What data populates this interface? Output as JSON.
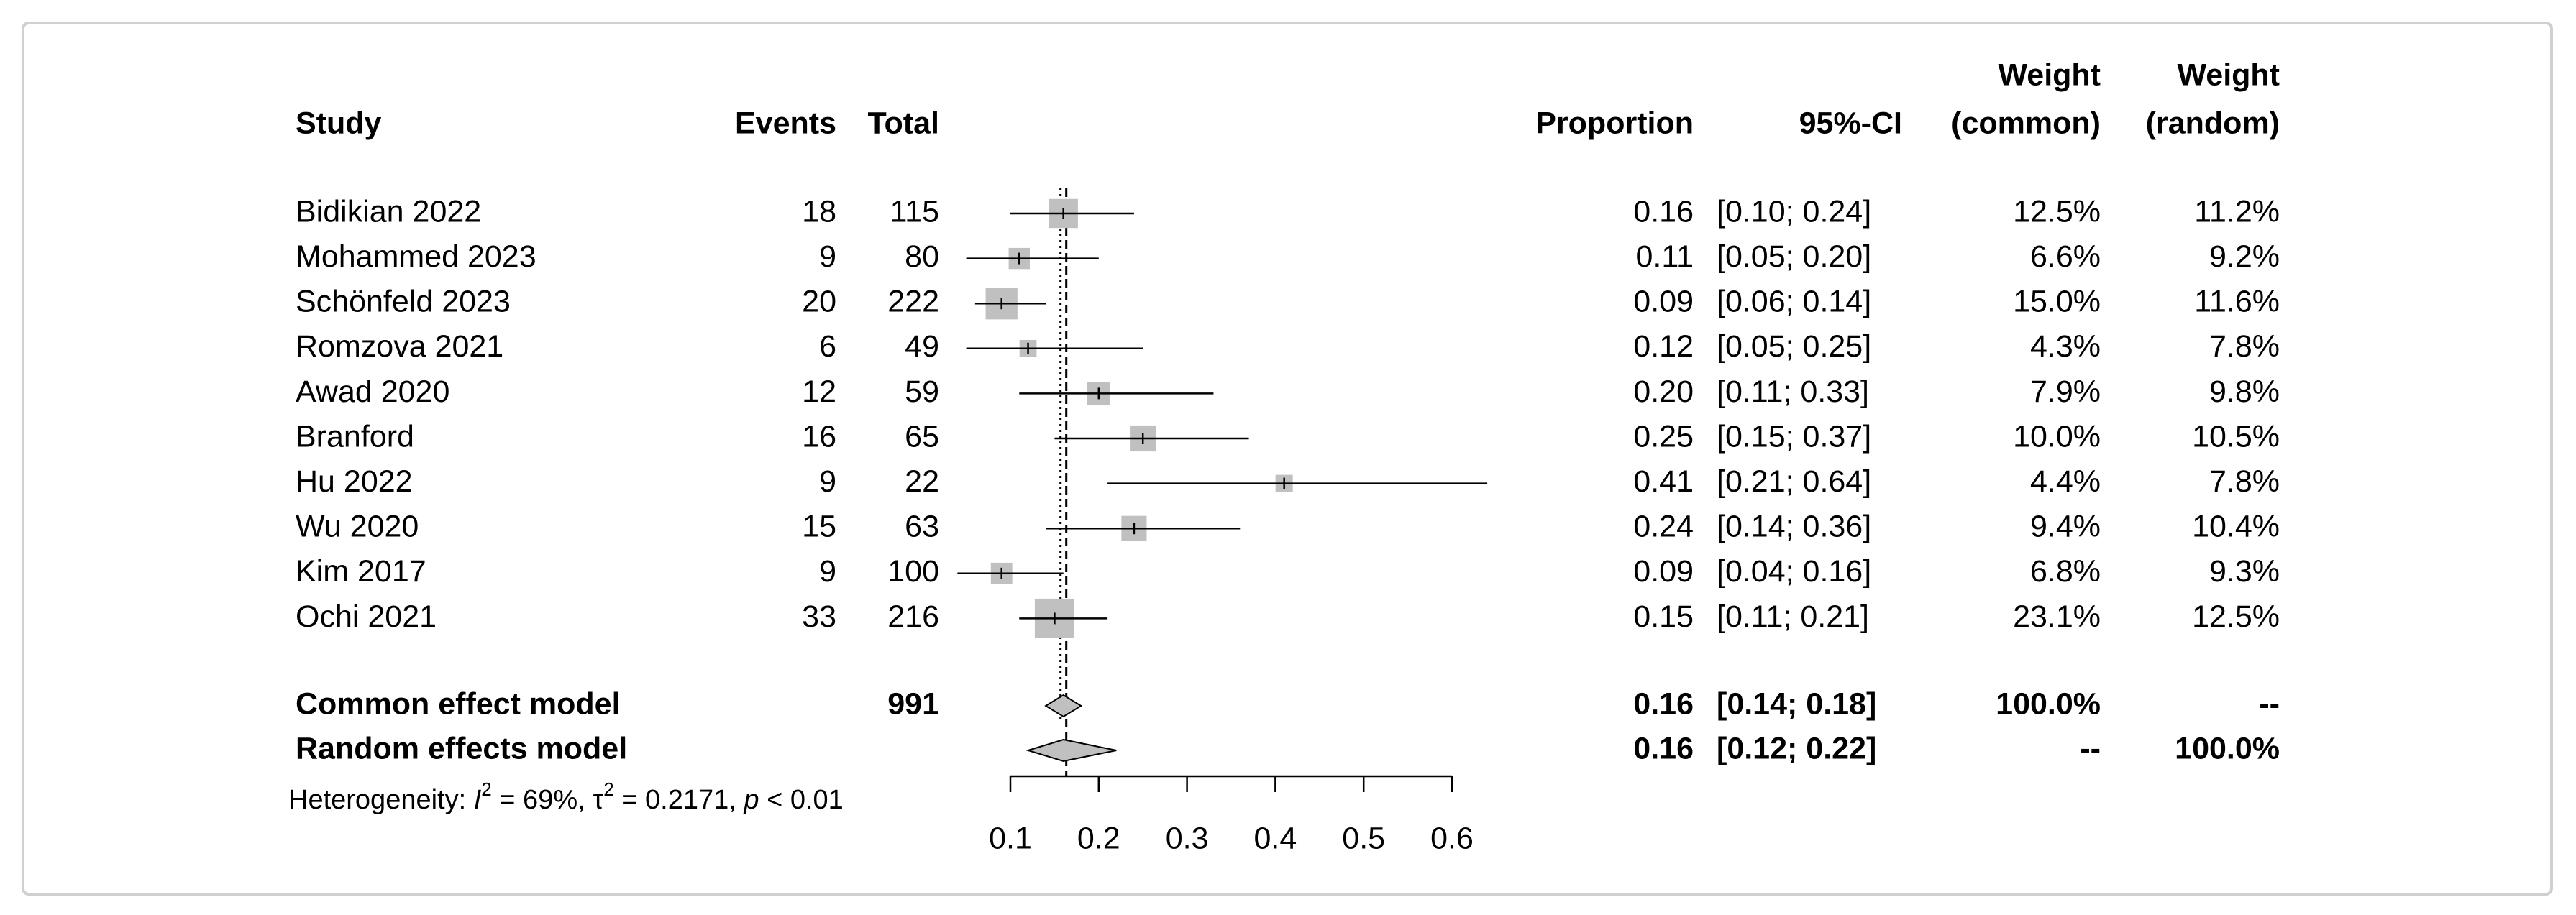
{
  "chart_data": {
    "type": "forest",
    "headers": {
      "study": "Study",
      "events": "Events",
      "total": "Total",
      "proportion": "Proportion",
      "ci": "95%-CI",
      "weight_common": [
        "Weight",
        "(common)"
      ],
      "weight_random": [
        "Weight",
        "(random)"
      ]
    },
    "studies": [
      "Bidikian 2022",
      "Mohammed 2023",
      "Schönfeld 2023",
      "Romzova 2021",
      "Awad 2020",
      "Branford",
      "Hu 2022",
      "Wu 2020",
      "Kim 2017",
      "Ochi 2021"
    ],
    "events": [
      18,
      9,
      20,
      6,
      12,
      16,
      9,
      15,
      9,
      33
    ],
    "totals": [
      115,
      80,
      222,
      49,
      59,
      65,
      22,
      63,
      100,
      216
    ],
    "values": [
      0.16,
      0.11,
      0.09,
      0.12,
      0.2,
      0.25,
      0.41,
      0.24,
      0.09,
      0.15
    ],
    "value_labels": [
      "0.16",
      "0.11",
      "0.09",
      "0.12",
      "0.20",
      "0.25",
      "0.41",
      "0.24",
      "0.09",
      "0.15"
    ],
    "ci_lower": [
      0.1,
      0.05,
      0.06,
      0.05,
      0.11,
      0.15,
      0.21,
      0.14,
      0.04,
      0.11
    ],
    "ci_upper": [
      0.24,
      0.2,
      0.14,
      0.25,
      0.33,
      0.37,
      0.64,
      0.36,
      0.16,
      0.21
    ],
    "ci_labels": [
      "[0.10; 0.24]",
      "[0.05; 0.20]",
      "[0.06; 0.14]",
      "[0.05; 0.25]",
      "[0.11; 0.33]",
      "[0.15; 0.37]",
      "[0.21; 0.64]",
      "[0.14; 0.36]",
      "[0.04; 0.16]",
      "[0.11; 0.21]"
    ],
    "weights_common": [
      12.5,
      6.6,
      15.0,
      4.3,
      7.9,
      10.0,
      4.4,
      9.4,
      6.8,
      23.1
    ],
    "weights_common_labels": [
      "12.5%",
      "6.6%",
      "15.0%",
      "4.3%",
      "7.9%",
      "10.0%",
      "4.4%",
      "9.4%",
      "6.8%",
      "23.1%"
    ],
    "weights_random": [
      11.2,
      9.2,
      11.6,
      7.8,
      9.8,
      10.5,
      7.8,
      10.4,
      9.3,
      12.5
    ],
    "weights_random_labels": [
      "11.2%",
      "9.2%",
      "11.6%",
      "7.8%",
      "9.8%",
      "10.5%",
      "7.8%",
      "10.4%",
      "9.3%",
      "12.5%"
    ],
    "pooled": [
      {
        "name": "Common effect model",
        "total": 991,
        "value": 0.16,
        "value_label": "0.16",
        "ci_lower": 0.14,
        "ci_upper": 0.18,
        "ci_label": "[0.14; 0.18]",
        "weight_common_label": "100.0%",
        "weight_random_label": "--"
      },
      {
        "name": "Random effects model",
        "value": 0.16,
        "value_label": "0.16",
        "ci_lower": 0.12,
        "ci_upper": 0.22,
        "ci_label": "[0.12; 0.22]",
        "weight_common_label": "--",
        "weight_random_label": "100.0%"
      }
    ],
    "heterogeneity": [
      "Heterogeneity: ",
      "I",
      "2",
      " = 69%, ",
      "τ",
      "2",
      " = 0.2171, ",
      "p",
      " < 0.01"
    ],
    "xlim": [
      0.1,
      0.6
    ],
    "xticks": [
      0.1,
      0.2,
      0.3,
      0.4,
      0.5,
      0.6
    ],
    "square_color": "#c0c0c0",
    "diamond_color": "#c0c0c0"
  }
}
